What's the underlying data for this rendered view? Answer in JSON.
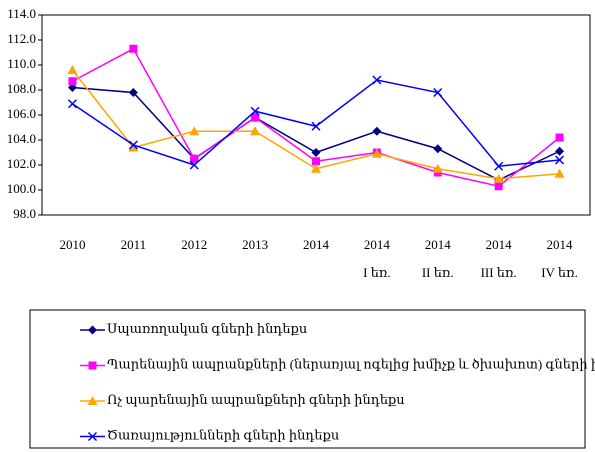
{
  "chart_data": {
    "type": "line",
    "categories": [
      "2010",
      "2011",
      "2012",
      "2013",
      "2014",
      "2014\nI եռ.",
      "2014\nII եռ.",
      "2014\nIII եռ.",
      "2014\nIV եռ."
    ],
    "series": [
      {
        "name": "Սպառողական գների ինդեքս",
        "color": "#000080",
        "marker": "diamond",
        "values": [
          108.2,
          107.8,
          102.5,
          105.8,
          103.0,
          104.7,
          103.3,
          100.8,
          103.1
        ]
      },
      {
        "name": "Պարենային ապրանքների (ներառյալ ոգելից խմիչք և ծխախոտ) գների ինդեքս",
        "color": "#ff00ff",
        "marker": "square",
        "values": [
          108.7,
          111.3,
          102.5,
          105.8,
          102.3,
          103.0,
          101.4,
          100.3,
          104.2
        ]
      },
      {
        "name": "Ոչ պարենային ապրանքների գների ինդեքս",
        "color": "#ffa500",
        "marker": "triangle",
        "values": [
          109.6,
          103.4,
          104.7,
          104.7,
          101.7,
          102.9,
          101.7,
          100.9,
          101.3
        ]
      },
      {
        "name": "Ծառայությունների գների ինդեքս",
        "color": "#0000ff",
        "marker": "x",
        "values": [
          106.9,
          103.6,
          102.0,
          106.3,
          105.1,
          108.8,
          107.8,
          101.9,
          102.4
        ]
      }
    ],
    "ylim": [
      98,
      114
    ],
    "yticks": [
      {
        "value": 98,
        "label": "98.0"
      },
      {
        "value": 100,
        "label": "100.0"
      },
      {
        "value": 102,
        "label": "102.0"
      },
      {
        "value": 104,
        "label": "104.0"
      },
      {
        "value": 106,
        "label": "106.0"
      },
      {
        "value": 108,
        "label": "108.0"
      },
      {
        "value": 110,
        "label": "110.0"
      },
      {
        "value": 112,
        "label": "112.0"
      },
      {
        "value": 114,
        "label": "114.0"
      }
    ],
    "grid": false,
    "legend": "bottom"
  }
}
